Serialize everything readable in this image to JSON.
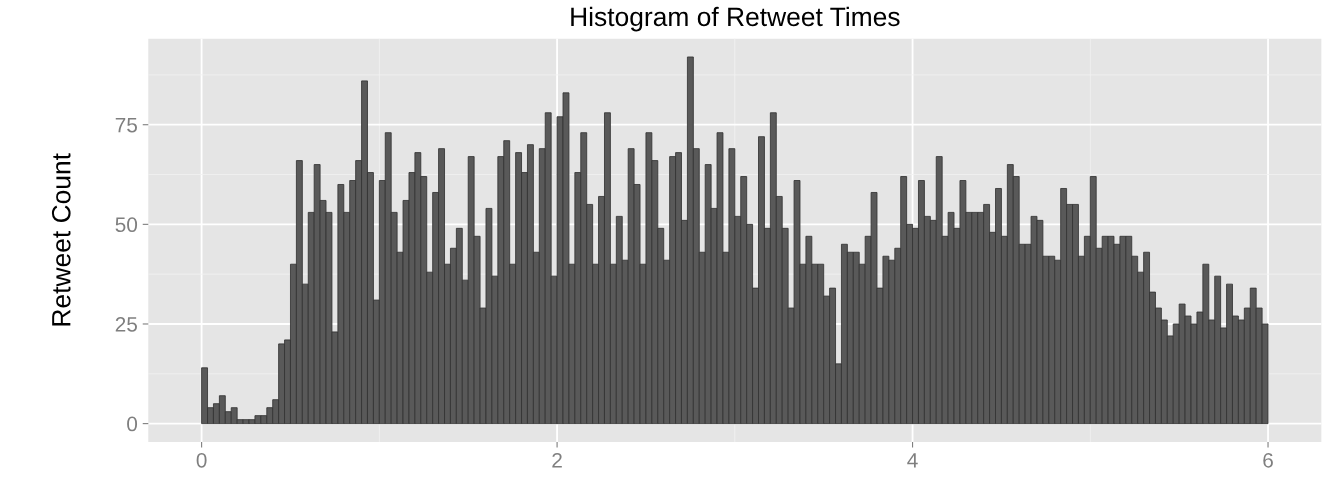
{
  "chart_data": {
    "type": "histogram",
    "title": "Histogram of Retweet Times",
    "ylabel": "Retweet Count",
    "bins": [
      0,
      0.0333,
      0.0667,
      0.1,
      0.1333,
      0.1667,
      0.2,
      0.2333,
      0.2667,
      0.3,
      0.3333,
      0.3667,
      0.4,
      0.4333,
      0.4667,
      0.5,
      0.5333,
      0.5667,
      0.6,
      0.6333,
      0.6667,
      0.7,
      0.7333,
      0.7667,
      0.8,
      0.8333,
      0.8667,
      0.9,
      0.9333,
      0.9667,
      1,
      1.0333,
      1.0667,
      1.1,
      1.1333,
      1.1667,
      1.2,
      1.2333,
      1.2667,
      1.3,
      1.3333,
      1.3667,
      1.4,
      1.4333,
      1.4667,
      1.5,
      1.5333,
      1.5667,
      1.6,
      1.6333,
      1.6667,
      1.7,
      1.7333,
      1.7667,
      1.8,
      1.8333,
      1.8667,
      1.9,
      1.9333,
      1.9667,
      2,
      2.0333,
      2.0667,
      2.1,
      2.1333,
      2.1667,
      2.2,
      2.2333,
      2.2667,
      2.3,
      2.3333,
      2.3667,
      2.4,
      2.4333,
      2.4667,
      2.5,
      2.5333,
      2.5667,
      2.6,
      2.6333,
      2.6667,
      2.7,
      2.7333,
      2.7667,
      2.8,
      2.8333,
      2.8667,
      2.9,
      2.9333,
      2.9667,
      3,
      3.0333,
      3.0667,
      3.1,
      3.1333,
      3.1667,
      3.2,
      3.2333,
      3.2667,
      3.3,
      3.3333,
      3.3667,
      3.4,
      3.4333,
      3.4667,
      3.5,
      3.5333,
      3.5667,
      3.6,
      3.6333,
      3.6667,
      3.7,
      3.7333,
      3.7667,
      3.8,
      3.8333,
      3.8667,
      3.9,
      3.9333,
      3.9667,
      4,
      4.0333,
      4.0667,
      4.1,
      4.1333,
      4.1667,
      4.2,
      4.2333,
      4.2667,
      4.3,
      4.3333,
      4.3667,
      4.4,
      4.4333,
      4.4667,
      4.5,
      4.5333,
      4.5667,
      4.6,
      4.6333,
      4.6667,
      4.7,
      4.7333,
      4.7667,
      4.8,
      4.8333,
      4.8667,
      4.9,
      4.9333,
      4.9667,
      5,
      5.0333,
      5.0667,
      5.1,
      5.1333,
      5.1667,
      5.2,
      5.2333,
      5.2667,
      5.3,
      5.3333,
      5.3667,
      5.4,
      5.4333,
      5.4667,
      5.5,
      5.5333,
      5.5667,
      5.6,
      5.6333,
      5.6667,
      5.7,
      5.7333,
      5.7667,
      5.8,
      5.8333,
      5.8667,
      5.9,
      5.9333,
      5.9667,
      6
    ],
    "values": [
      14,
      4,
      5,
      7,
      3,
      4,
      1,
      1,
      1,
      2,
      2,
      4,
      6,
      20,
      21,
      40,
      66,
      35,
      53,
      65,
      56,
      53,
      23,
      60,
      53,
      61,
      66,
      86,
      63,
      31,
      61,
      73,
      53,
      43,
      56,
      63,
      68,
      62,
      38,
      58,
      69,
      40,
      44,
      49,
      36,
      67,
      47,
      29,
      54,
      37,
      67,
      71,
      40,
      68,
      63,
      70,
      43,
      69,
      78,
      37,
      77,
      83,
      40,
      63,
      73,
      55,
      40,
      57,
      78,
      40,
      52,
      41,
      69,
      60,
      40,
      73,
      66,
      49,
      41,
      67,
      68,
      51,
      92,
      69,
      43,
      65,
      54,
      73,
      43,
      69,
      52,
      62,
      50,
      34,
      72,
      49,
      78,
      57,
      49,
      29,
      61,
      40,
      47,
      40,
      40,
      32,
      34,
      15,
      45,
      43,
      43,
      40,
      47,
      58,
      34,
      42,
      41,
      44,
      62,
      50,
      49,
      61,
      52,
      51,
      67,
      47,
      53,
      49,
      61,
      53,
      53,
      53,
      55,
      48,
      59,
      47,
      65,
      62,
      45,
      45,
      52,
      51,
      42,
      42,
      41,
      59,
      55,
      55,
      42,
      47,
      62,
      44,
      47,
      47,
      45,
      47,
      47,
      42,
      38,
      43,
      33,
      29,
      26,
      22,
      25,
      30,
      27,
      25,
      28,
      40,
      26,
      37,
      24,
      35,
      27,
      26,
      29,
      34,
      29,
      25
    ],
    "color": "#595959",
    "xlim": [
      -0.3,
      6.3
    ],
    "xticks": [
      0,
      2,
      4,
      6
    ],
    "ylim": [
      -4.6,
      96.6
    ],
    "yticks": [
      0,
      25,
      50,
      75
    ],
    "grid": true
  }
}
